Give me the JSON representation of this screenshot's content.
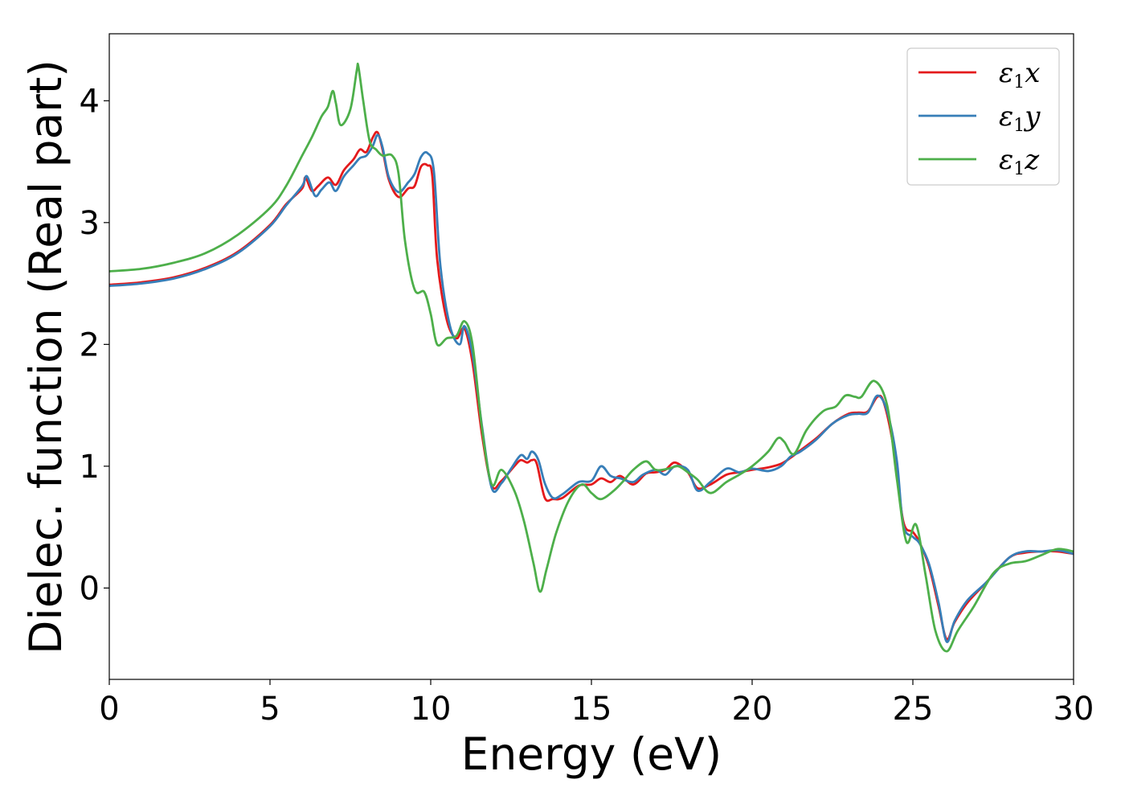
{
  "chart_data": {
    "type": "line",
    "xlabel": "Energy (eV)",
    "ylabel": "Dielec. function (Real part)",
    "xlim": [
      0,
      30
    ],
    "ylim": [
      -0.75,
      4.55
    ],
    "xticks": [
      "0",
      "5",
      "10",
      "15",
      "20",
      "25",
      "30"
    ],
    "yticks": [
      "0",
      "1",
      "2",
      "3",
      "4"
    ],
    "grid": false,
    "legend_position": "top-right",
    "series": [
      {
        "name": "ε₁x",
        "legend": {
          "sym": "ε",
          "sub": "1",
          "comp": "x"
        },
        "color": "#e41a1c",
        "points": [
          [
            0,
            2.49
          ],
          [
            1,
            2.51
          ],
          [
            2,
            2.55
          ],
          [
            3,
            2.63
          ],
          [
            4,
            2.76
          ],
          [
            5,
            2.98
          ],
          [
            5.5,
            3.15
          ],
          [
            6,
            3.28
          ],
          [
            6.1,
            3.37
          ],
          [
            6.3,
            3.26
          ],
          [
            6.5,
            3.3
          ],
          [
            6.8,
            3.37
          ],
          [
            7.05,
            3.31
          ],
          [
            7.3,
            3.43
          ],
          [
            7.6,
            3.52
          ],
          [
            7.8,
            3.6
          ],
          [
            8,
            3.58
          ],
          [
            8.2,
            3.7
          ],
          [
            8.35,
            3.74
          ],
          [
            8.5,
            3.6
          ],
          [
            8.7,
            3.35
          ],
          [
            9,
            3.21
          ],
          [
            9.3,
            3.28
          ],
          [
            9.5,
            3.3
          ],
          [
            9.7,
            3.46
          ],
          [
            9.9,
            3.47
          ],
          [
            10.05,
            3.38
          ],
          [
            10.2,
            2.7
          ],
          [
            10.5,
            2.2
          ],
          [
            10.8,
            2.05
          ],
          [
            11.05,
            2.13
          ],
          [
            11.3,
            1.85
          ],
          [
            11.6,
            1.25
          ],
          [
            11.9,
            0.84
          ],
          [
            12.2,
            0.88
          ],
          [
            12.6,
            1.0
          ],
          [
            12.8,
            1.05
          ],
          [
            13,
            1.03
          ],
          [
            13.15,
            1.05
          ],
          [
            13.3,
            1.02
          ],
          [
            13.55,
            0.74
          ],
          [
            13.8,
            0.73
          ],
          [
            14.1,
            0.74
          ],
          [
            14.6,
            0.84
          ],
          [
            15,
            0.85
          ],
          [
            15.3,
            0.9
          ],
          [
            15.6,
            0.87
          ],
          [
            15.9,
            0.92
          ],
          [
            16.3,
            0.85
          ],
          [
            16.7,
            0.94
          ],
          [
            17,
            0.95
          ],
          [
            17.3,
            0.97
          ],
          [
            17.6,
            1.03
          ],
          [
            18,
            0.95
          ],
          [
            18.3,
            0.82
          ],
          [
            18.7,
            0.85
          ],
          [
            19.2,
            0.93
          ],
          [
            19.6,
            0.95
          ],
          [
            20,
            0.97
          ],
          [
            20.5,
            0.99
          ],
          [
            20.9,
            1.02
          ],
          [
            21.2,
            1.07
          ],
          [
            21.5,
            1.13
          ],
          [
            22,
            1.23
          ],
          [
            22.5,
            1.35
          ],
          [
            23,
            1.43
          ],
          [
            23.3,
            1.44
          ],
          [
            23.6,
            1.45
          ],
          [
            23.9,
            1.57
          ],
          [
            24.1,
            1.52
          ],
          [
            24.4,
            1.15
          ],
          [
            24.7,
            0.55
          ],
          [
            25,
            0.46
          ],
          [
            25.2,
            0.38
          ],
          [
            25.5,
            0.18
          ],
          [
            25.8,
            -0.15
          ],
          [
            26.05,
            -0.42
          ],
          [
            26.3,
            -0.28
          ],
          [
            26.7,
            -0.12
          ],
          [
            27.3,
            0.05
          ],
          [
            28,
            0.25
          ],
          [
            28.5,
            0.29
          ],
          [
            29,
            0.3
          ],
          [
            29.5,
            0.3
          ],
          [
            30,
            0.28
          ]
        ]
      },
      {
        "name": "ε₁y",
        "legend": {
          "sym": "ε",
          "sub": "1",
          "comp": "y"
        },
        "color": "#377eb8",
        "points": [
          [
            0,
            2.48
          ],
          [
            1,
            2.5
          ],
          [
            2,
            2.54
          ],
          [
            3,
            2.62
          ],
          [
            4,
            2.75
          ],
          [
            5,
            2.97
          ],
          [
            5.5,
            3.14
          ],
          [
            6,
            3.3
          ],
          [
            6.15,
            3.38
          ],
          [
            6.4,
            3.22
          ],
          [
            6.6,
            3.27
          ],
          [
            6.85,
            3.33
          ],
          [
            7.05,
            3.26
          ],
          [
            7.3,
            3.38
          ],
          [
            7.6,
            3.47
          ],
          [
            7.8,
            3.53
          ],
          [
            8,
            3.55
          ],
          [
            8.2,
            3.63
          ],
          [
            8.35,
            3.72
          ],
          [
            8.5,
            3.62
          ],
          [
            8.7,
            3.37
          ],
          [
            9,
            3.25
          ],
          [
            9.3,
            3.33
          ],
          [
            9.5,
            3.4
          ],
          [
            9.7,
            3.54
          ],
          [
            9.9,
            3.57
          ],
          [
            10.1,
            3.42
          ],
          [
            10.3,
            2.65
          ],
          [
            10.6,
            2.15
          ],
          [
            10.9,
            2.0
          ],
          [
            11.05,
            2.15
          ],
          [
            11.3,
            1.92
          ],
          [
            11.6,
            1.32
          ],
          [
            11.9,
            0.82
          ],
          [
            12.2,
            0.86
          ],
          [
            12.5,
            0.98
          ],
          [
            12.8,
            1.09
          ],
          [
            13,
            1.06
          ],
          [
            13.15,
            1.12
          ],
          [
            13.35,
            1.05
          ],
          [
            13.55,
            0.86
          ],
          [
            13.8,
            0.74
          ],
          [
            14.1,
            0.77
          ],
          [
            14.6,
            0.87
          ],
          [
            15,
            0.88
          ],
          [
            15.3,
            1.0
          ],
          [
            15.6,
            0.92
          ],
          [
            15.9,
            0.9
          ],
          [
            16.3,
            0.87
          ],
          [
            16.6,
            0.93
          ],
          [
            17,
            0.97
          ],
          [
            17.3,
            0.93
          ],
          [
            17.6,
            1.0
          ],
          [
            18,
            0.97
          ],
          [
            18.3,
            0.8
          ],
          [
            18.7,
            0.87
          ],
          [
            19.2,
            0.98
          ],
          [
            19.6,
            0.95
          ],
          [
            20,
            0.98
          ],
          [
            20.5,
            0.96
          ],
          [
            20.9,
            1.0
          ],
          [
            21.2,
            1.08
          ],
          [
            21.5,
            1.12
          ],
          [
            22,
            1.22
          ],
          [
            22.5,
            1.35
          ],
          [
            23,
            1.42
          ],
          [
            23.3,
            1.43
          ],
          [
            23.6,
            1.44
          ],
          [
            23.9,
            1.58
          ],
          [
            24.2,
            1.45
          ],
          [
            24.5,
            1.05
          ],
          [
            24.7,
            0.52
          ],
          [
            25,
            0.42
          ],
          [
            25.2,
            0.37
          ],
          [
            25.5,
            0.2
          ],
          [
            25.8,
            -0.12
          ],
          [
            26.05,
            -0.44
          ],
          [
            26.3,
            -0.27
          ],
          [
            26.7,
            -0.1
          ],
          [
            27.3,
            0.05
          ],
          [
            28,
            0.25
          ],
          [
            28.5,
            0.3
          ],
          [
            29,
            0.3
          ],
          [
            29.5,
            0.31
          ],
          [
            30,
            0.28
          ]
        ]
      },
      {
        "name": "ε₁z",
        "legend": {
          "sym": "ε",
          "sub": "1",
          "comp": "z"
        },
        "color": "#4daf4a",
        "points": [
          [
            0,
            2.6
          ],
          [
            1,
            2.62
          ],
          [
            2,
            2.67
          ],
          [
            3,
            2.75
          ],
          [
            4,
            2.9
          ],
          [
            5,
            3.12
          ],
          [
            5.5,
            3.3
          ],
          [
            6,
            3.55
          ],
          [
            6.3,
            3.7
          ],
          [
            6.6,
            3.87
          ],
          [
            6.8,
            3.95
          ],
          [
            6.95,
            4.08
          ],
          [
            7.05,
            3.98
          ],
          [
            7.2,
            3.8
          ],
          [
            7.5,
            3.93
          ],
          [
            7.7,
            4.25
          ],
          [
            7.75,
            4.28
          ],
          [
            7.9,
            4.0
          ],
          [
            8.1,
            3.67
          ],
          [
            8.3,
            3.6
          ],
          [
            8.5,
            3.55
          ],
          [
            8.8,
            3.55
          ],
          [
            9.0,
            3.4
          ],
          [
            9.2,
            2.85
          ],
          [
            9.5,
            2.45
          ],
          [
            9.8,
            2.43
          ],
          [
            10,
            2.25
          ],
          [
            10.2,
            2.0
          ],
          [
            10.5,
            2.05
          ],
          [
            10.8,
            2.07
          ],
          [
            11.05,
            2.19
          ],
          [
            11.3,
            2.0
          ],
          [
            11.6,
            1.3
          ],
          [
            11.9,
            0.85
          ],
          [
            12.2,
            0.97
          ],
          [
            12.6,
            0.8
          ],
          [
            12.9,
            0.55
          ],
          [
            13.2,
            0.2
          ],
          [
            13.4,
            -0.03
          ],
          [
            13.6,
            0.15
          ],
          [
            13.9,
            0.45
          ],
          [
            14.3,
            0.72
          ],
          [
            14.7,
            0.85
          ],
          [
            15,
            0.78
          ],
          [
            15.3,
            0.73
          ],
          [
            15.7,
            0.8
          ],
          [
            16,
            0.88
          ],
          [
            16.3,
            0.97
          ],
          [
            16.7,
            1.04
          ],
          [
            17,
            0.97
          ],
          [
            17.4,
            0.98
          ],
          [
            17.7,
            1.0
          ],
          [
            18,
            0.95
          ],
          [
            18.3,
            0.89
          ],
          [
            18.7,
            0.78
          ],
          [
            19.2,
            0.87
          ],
          [
            19.6,
            0.93
          ],
          [
            20,
            1.0
          ],
          [
            20.5,
            1.12
          ],
          [
            20.8,
            1.23
          ],
          [
            21,
            1.2
          ],
          [
            21.3,
            1.1
          ],
          [
            21.7,
            1.3
          ],
          [
            22.2,
            1.45
          ],
          [
            22.6,
            1.49
          ],
          [
            22.9,
            1.58
          ],
          [
            23.2,
            1.57
          ],
          [
            23.4,
            1.57
          ],
          [
            23.8,
            1.7
          ],
          [
            24.2,
            1.5
          ],
          [
            24.5,
            0.9
          ],
          [
            24.8,
            0.38
          ],
          [
            25.1,
            0.52
          ],
          [
            25.4,
            0.1
          ],
          [
            25.7,
            -0.35
          ],
          [
            26.05,
            -0.52
          ],
          [
            26.4,
            -0.35
          ],
          [
            26.9,
            -0.15
          ],
          [
            27.5,
            0.12
          ],
          [
            28,
            0.2
          ],
          [
            28.5,
            0.22
          ],
          [
            29,
            0.27
          ],
          [
            29.5,
            0.32
          ],
          [
            30,
            0.3
          ]
        ]
      }
    ]
  }
}
